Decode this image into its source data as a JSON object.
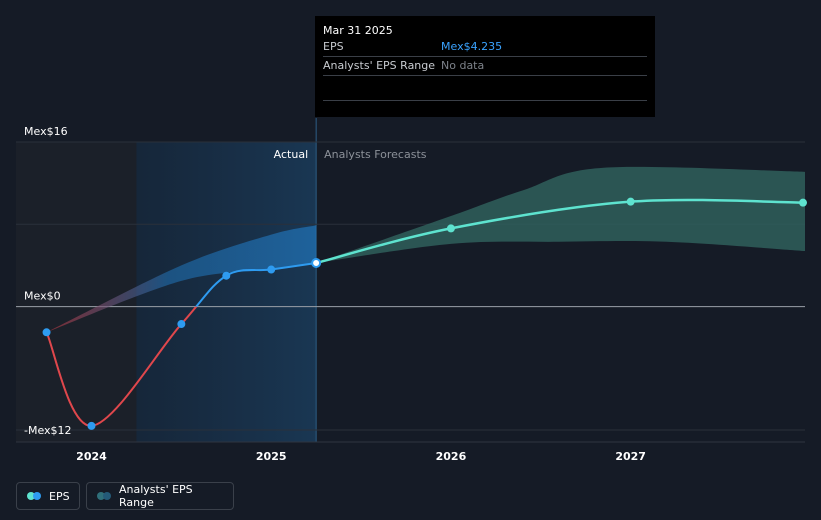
{
  "chart_data": {
    "type": "line",
    "currency_prefix": "Mex$",
    "y_axis": {
      "labels": [
        {
          "text": "Mex$16",
          "value": 16
        },
        {
          "text": "Mex$0",
          "value": 0
        },
        {
          "text": "-Mex$12",
          "value": -12
        }
      ],
      "ylim": [
        -12,
        16
      ]
    },
    "x_axis": {
      "ticks": [
        {
          "text": "2024",
          "value": 2024.0
        },
        {
          "text": "2025",
          "value": 2025.0
        },
        {
          "text": "2026",
          "value": 2026.0
        },
        {
          "text": "2027",
          "value": 2027.0
        }
      ],
      "xlim": [
        2023.58,
        2027.97
      ]
    },
    "sections": {
      "actual_label": "Actual",
      "forecast_label": "Analysts Forecasts",
      "past_start": 2024.25,
      "divider": 2025.25
    },
    "series": [
      {
        "name": "EPS (actual)",
        "color_neg": "#e0474c",
        "color_pos": "#2e9bf0",
        "points": [
          {
            "x": 2023.75,
            "y": -2.5
          },
          {
            "x": 2024.0,
            "y": -11.6
          },
          {
            "x": 2024.5,
            "y": -1.7
          },
          {
            "x": 2024.75,
            "y": 3.0
          },
          {
            "x": 2025.0,
            "y": 3.6
          },
          {
            "x": 2025.25,
            "y": 4.235
          }
        ]
      },
      {
        "name": "EPS (forecast)",
        "color": "#5ee3cf",
        "points": [
          {
            "x": 2025.25,
            "y": 4.235
          },
          {
            "x": 2026.0,
            "y": 7.6
          },
          {
            "x": 2027.0,
            "y": 10.2
          },
          {
            "x": 2027.97,
            "y": 10.1
          }
        ]
      }
    ],
    "ranges": [
      {
        "name": "Analysts' EPS Range (past)",
        "upper": [
          {
            "x": 2023.75,
            "y": -2.5
          },
          {
            "x": 2024.5,
            "y": 4.0
          },
          {
            "x": 2025.0,
            "y": 7.0
          },
          {
            "x": 2025.25,
            "y": 7.9
          }
        ],
        "lower": [
          {
            "x": 2023.75,
            "y": -2.5
          },
          {
            "x": 2024.5,
            "y": 2.5
          },
          {
            "x": 2025.0,
            "y": 3.6
          },
          {
            "x": 2025.25,
            "y": 4.235
          }
        ]
      },
      {
        "name": "Analysts' EPS Range (forecast)",
        "upper": [
          {
            "x": 2025.25,
            "y": 4.235
          },
          {
            "x": 2026.0,
            "y": 8.8
          },
          {
            "x": 2026.4,
            "y": 11.3
          },
          {
            "x": 2026.85,
            "y": 13.5
          },
          {
            "x": 2027.97,
            "y": 13.1
          }
        ],
        "lower": [
          {
            "x": 2025.25,
            "y": 4.235
          },
          {
            "x": 2026.0,
            "y": 6.1
          },
          {
            "x": 2026.6,
            "y": 6.3
          },
          {
            "x": 2027.2,
            "y": 6.3
          },
          {
            "x": 2027.97,
            "y": 5.4
          }
        ]
      }
    ]
  },
  "tooltip": {
    "date": "Mar 31 2025",
    "eps_label": "EPS",
    "eps_value": "Mex$4.235",
    "range_label": "Analysts' EPS Range",
    "range_value": "No data"
  },
  "legend": {
    "eps_label": "EPS",
    "range_label": "Analysts' EPS Range"
  },
  "colors": {
    "background": "#151b26",
    "eps_negative": "#e0474c",
    "eps_positive": "#2e9bf0",
    "forecast": "#5ee3cf",
    "past_range": "#1e6fae",
    "forecast_range": "#2f5f5c"
  }
}
